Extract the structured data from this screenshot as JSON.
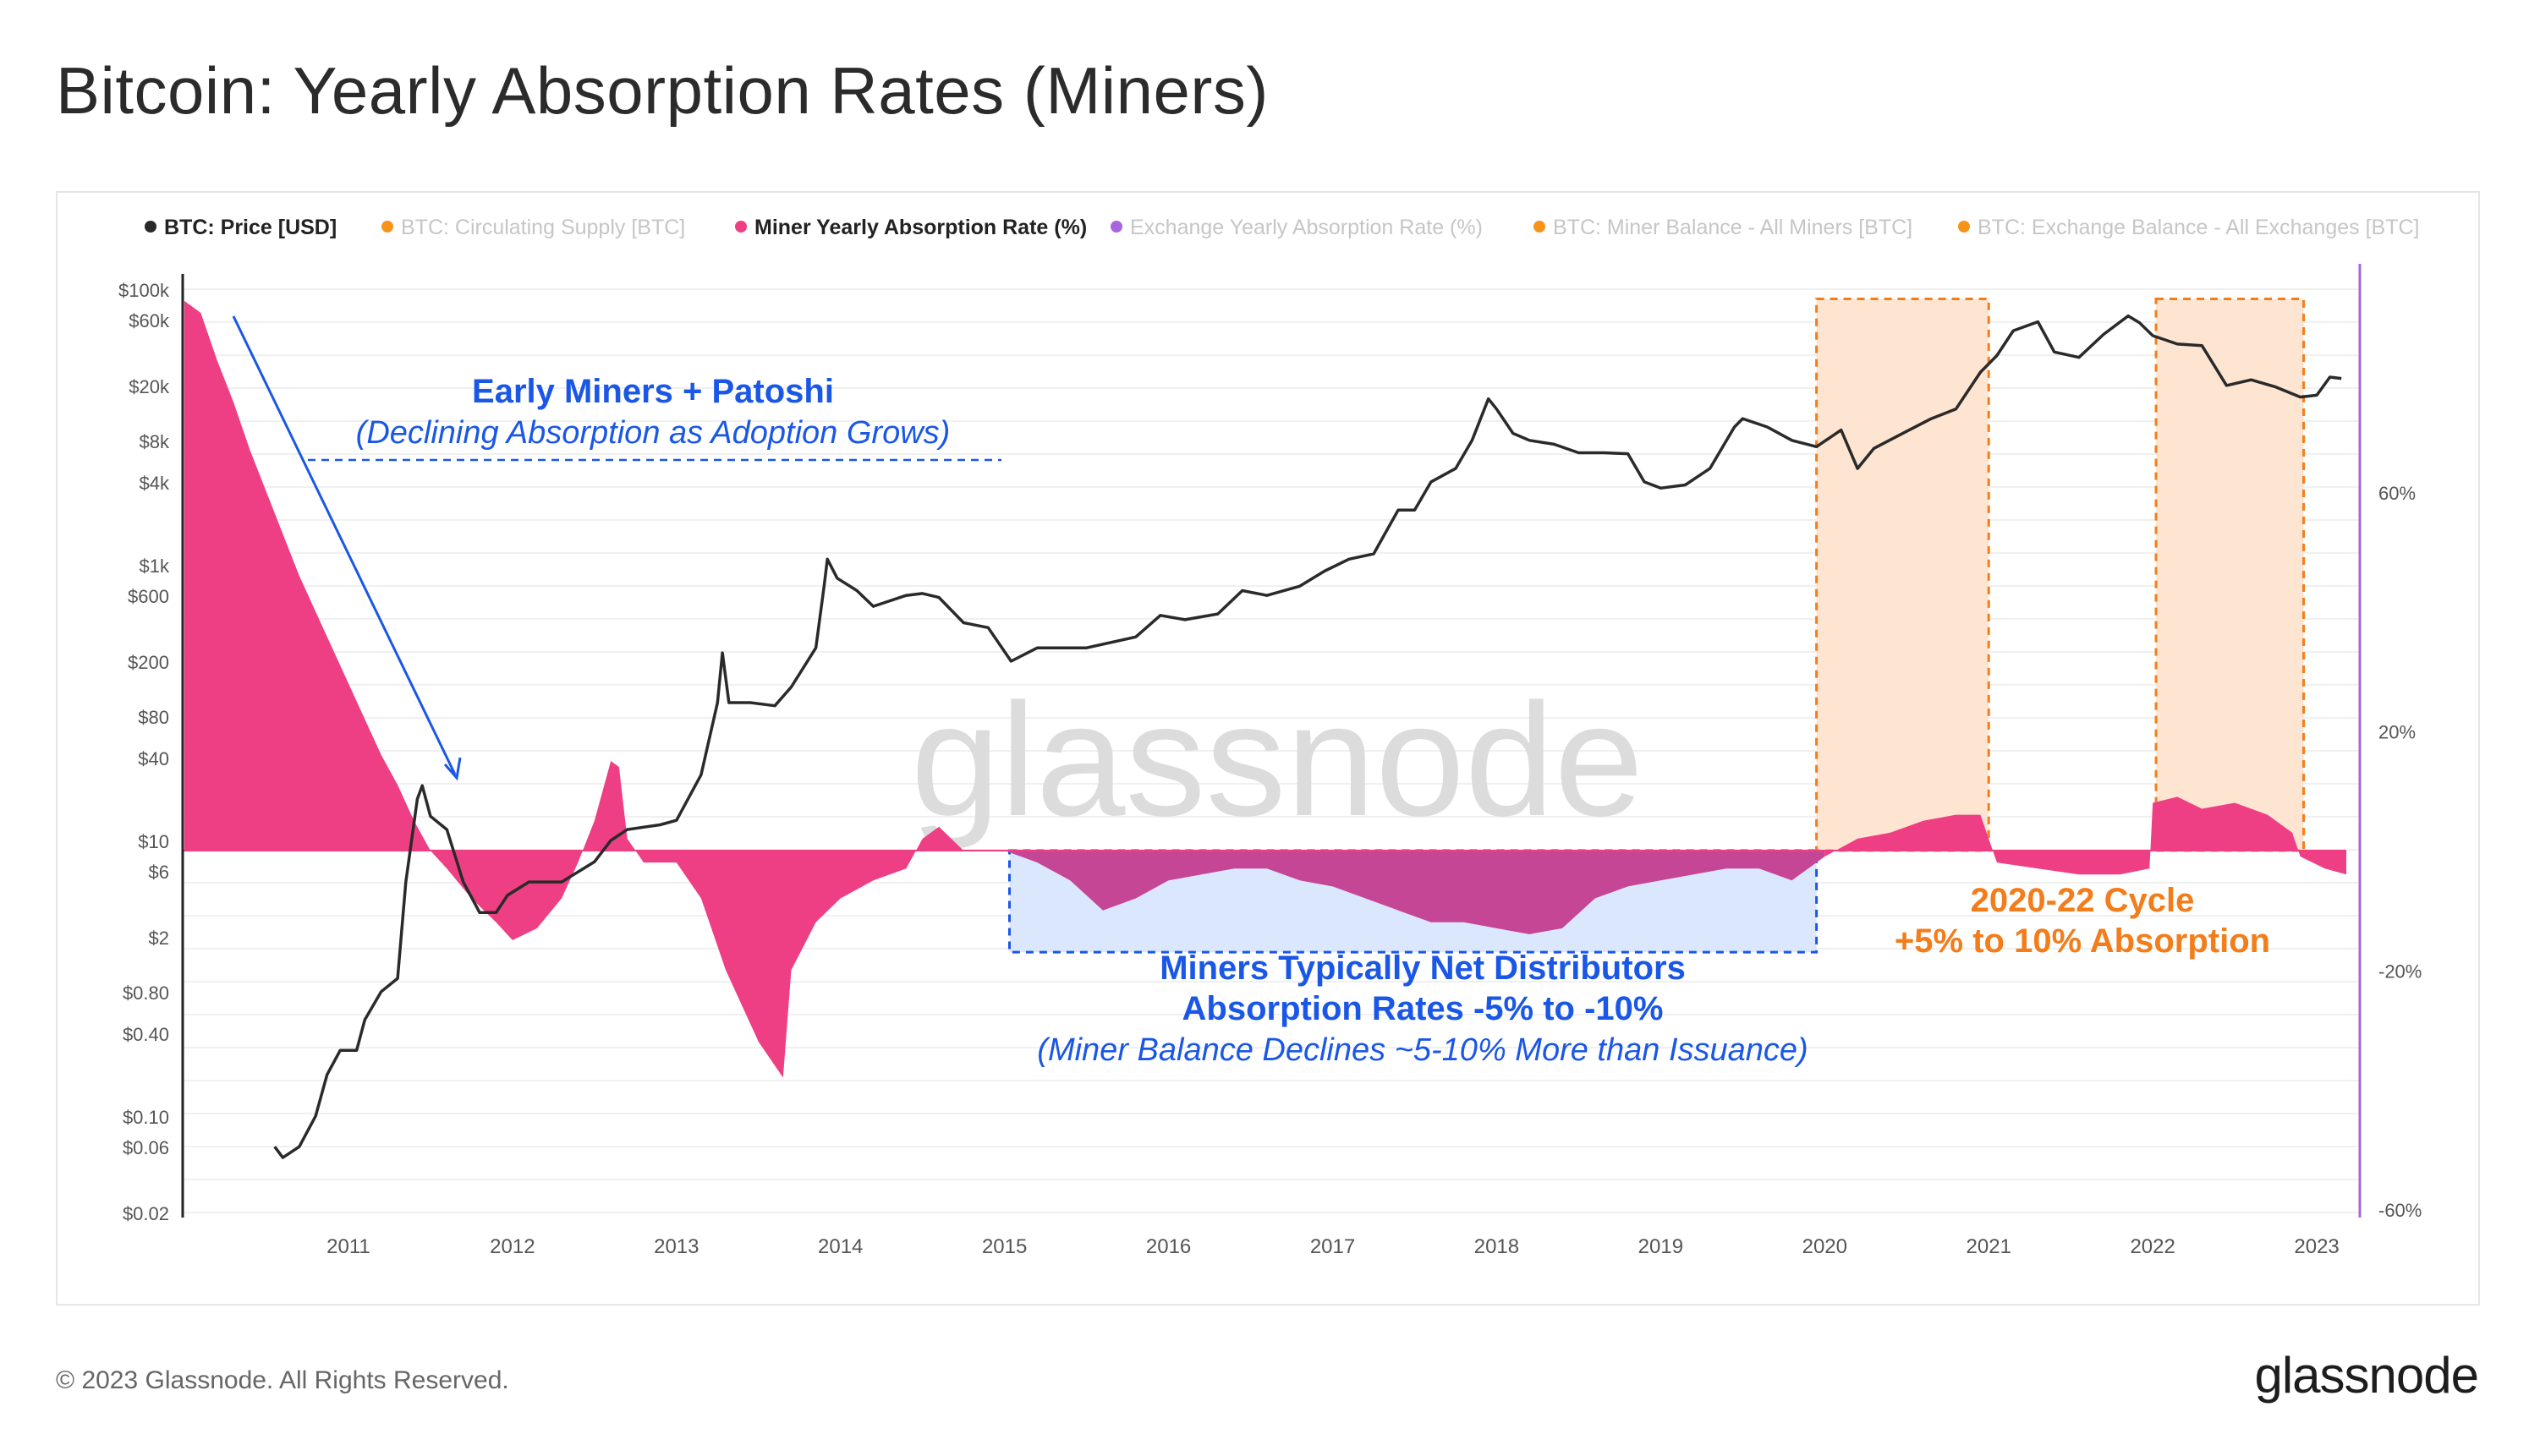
{
  "header": {
    "title": "Bitcoin: Yearly Absorption Rates (Miners)"
  },
  "footer": {
    "copyright": "© 2023 Glassnode. All Rights Reserved.",
    "logo_text": "glassnode"
  },
  "watermark": "glassnode",
  "colors": {
    "price_line": "#2a2a2a",
    "miner_rate_fill": "#ef3f84",
    "miner_rate_fill_dim": "#c64696",
    "right_axis": "#a766e0",
    "annotation_blue": "#1a57e6",
    "annotation_orange": "#f37d1a",
    "highlight_orange_bg": "#fde5d1",
    "highlight_blue_bg": "#dbe7fd",
    "grid": "#ececec"
  },
  "chart_data": {
    "type": "line",
    "title": "Bitcoin: Yearly Absorption Rates (Miners)",
    "legend_position": "top",
    "legend": [
      {
        "label": "BTC: Price [USD]",
        "color": "#2a2a2a",
        "active": true
      },
      {
        "label": "BTC: Circulating Supply [BTC]",
        "color": "#f7931a",
        "active": false
      },
      {
        "label": "Miner Yearly Absorption Rate (%)",
        "color": "#ef3f84",
        "active": true
      },
      {
        "label": "Exchange Yearly Absorption Rate (%)",
        "color": "#a766e0",
        "active": false
      },
      {
        "label": "BTC: Miner Balance - All Miners [BTC]",
        "color": "#f7931a",
        "active": false
      },
      {
        "label": "BTC: Exchange Balance - All Exchanges [BTC]",
        "color": "#f7931a",
        "active": false
      }
    ],
    "x_axis": {
      "range": [
        2010.0,
        2023.18
      ],
      "ticks": [
        "2011",
        "2012",
        "2013",
        "2014",
        "2015",
        "2016",
        "2017",
        "2018",
        "2019",
        "2020",
        "2021",
        "2022",
        "2023"
      ]
    },
    "y_left": {
      "scale": "log",
      "range": [
        0.02,
        100000
      ],
      "ticks": [
        {
          "label": "$100k",
          "v": 100000
        },
        {
          "label": "$60k",
          "v": 60000
        },
        {
          "label": "$20k",
          "v": 20000
        },
        {
          "label": "$8k",
          "v": 8000
        },
        {
          "label": "$4k",
          "v": 4000
        },
        {
          "label": "$1k",
          "v": 1000
        },
        {
          "label": "$600",
          "v": 600
        },
        {
          "label": "$200",
          "v": 200
        },
        {
          "label": "$80",
          "v": 80
        },
        {
          "label": "$40",
          "v": 40
        },
        {
          "label": "$10",
          "v": 10
        },
        {
          "label": "$6",
          "v": 6
        },
        {
          "label": "$2",
          "v": 2
        },
        {
          "label": "$0.80",
          "v": 0.8
        },
        {
          "label": "$0.40",
          "v": 0.4
        },
        {
          "label": "$0.10",
          "v": 0.1
        },
        {
          "label": "$0.06",
          "v": 0.06
        },
        {
          "label": "$0.02",
          "v": 0.02
        }
      ]
    },
    "y_right": {
      "range": [
        -60,
        100
      ],
      "ticks": [
        {
          "label": "60%",
          "v": 60
        },
        {
          "label": "20%",
          "v": 20
        },
        {
          "label": "-20%",
          "v": -20
        },
        {
          "label": "-60%",
          "v": -60
        }
      ]
    },
    "series": [
      {
        "name": "BTC: Price [USD]",
        "axis": "left",
        "points": [
          [
            2010.55,
            0.06
          ],
          [
            2010.6,
            0.05
          ],
          [
            2010.7,
            0.06
          ],
          [
            2010.8,
            0.1
          ],
          [
            2010.87,
            0.2
          ],
          [
            2010.95,
            0.3
          ],
          [
            2011.05,
            0.3
          ],
          [
            2011.1,
            0.5
          ],
          [
            2011.2,
            0.8
          ],
          [
            2011.3,
            1
          ],
          [
            2011.35,
            5
          ],
          [
            2011.42,
            20
          ],
          [
            2011.45,
            25
          ],
          [
            2011.5,
            15
          ],
          [
            2011.6,
            12
          ],
          [
            2011.7,
            5
          ],
          [
            2011.8,
            3
          ],
          [
            2011.9,
            3
          ],
          [
            2011.97,
            4
          ],
          [
            2012.1,
            5
          ],
          [
            2012.3,
            5
          ],
          [
            2012.5,
            7
          ],
          [
            2012.6,
            10
          ],
          [
            2012.7,
            12
          ],
          [
            2012.9,
            13
          ],
          [
            2013.0,
            14
          ],
          [
            2013.15,
            30
          ],
          [
            2013.25,
            100
          ],
          [
            2013.28,
            230
          ],
          [
            2013.32,
            100
          ],
          [
            2013.45,
            100
          ],
          [
            2013.6,
            95
          ],
          [
            2013.7,
            130
          ],
          [
            2013.85,
            250
          ],
          [
            2013.9,
            700
          ],
          [
            2013.92,
            1100
          ],
          [
            2013.98,
            800
          ],
          [
            2014.1,
            650
          ],
          [
            2014.2,
            500
          ],
          [
            2014.4,
            600
          ],
          [
            2014.5,
            620
          ],
          [
            2014.6,
            580
          ],
          [
            2014.75,
            380
          ],
          [
            2014.9,
            350
          ],
          [
            2015.04,
            200
          ],
          [
            2015.2,
            250
          ],
          [
            2015.5,
            250
          ],
          [
            2015.8,
            300
          ],
          [
            2015.95,
            430
          ],
          [
            2016.1,
            400
          ],
          [
            2016.3,
            440
          ],
          [
            2016.45,
            650
          ],
          [
            2016.6,
            600
          ],
          [
            2016.8,
            700
          ],
          [
            2016.95,
            900
          ],
          [
            2017.1,
            1100
          ],
          [
            2017.25,
            1200
          ],
          [
            2017.4,
            2500
          ],
          [
            2017.5,
            2500
          ],
          [
            2017.6,
            4000
          ],
          [
            2017.75,
            5000
          ],
          [
            2017.85,
            8000
          ],
          [
            2017.95,
            16000
          ],
          [
            2018.0,
            13500
          ],
          [
            2018.1,
            9000
          ],
          [
            2018.2,
            8000
          ],
          [
            2018.35,
            7500
          ],
          [
            2018.5,
            6500
          ],
          [
            2018.65,
            6500
          ],
          [
            2018.8,
            6400
          ],
          [
            2018.9,
            4000
          ],
          [
            2019.0,
            3600
          ],
          [
            2019.15,
            3800
          ],
          [
            2019.3,
            5000
          ],
          [
            2019.45,
            10000
          ],
          [
            2019.5,
            11500
          ],
          [
            2019.65,
            10000
          ],
          [
            2019.8,
            8000
          ],
          [
            2019.95,
            7200
          ],
          [
            2020.1,
            9500
          ],
          [
            2020.2,
            5000
          ],
          [
            2020.3,
            7000
          ],
          [
            2020.5,
            9300
          ],
          [
            2020.65,
            11500
          ],
          [
            2020.8,
            13500
          ],
          [
            2020.95,
            25000
          ],
          [
            2021.05,
            33000
          ],
          [
            2021.15,
            50000
          ],
          [
            2021.3,
            58000
          ],
          [
            2021.4,
            35000
          ],
          [
            2021.55,
            32000
          ],
          [
            2021.7,
            47000
          ],
          [
            2021.85,
            64000
          ],
          [
            2021.92,
            57000
          ],
          [
            2022.0,
            46000
          ],
          [
            2022.15,
            40000
          ],
          [
            2022.3,
            39000
          ],
          [
            2022.45,
            20000
          ],
          [
            2022.6,
            22000
          ],
          [
            2022.75,
            19500
          ],
          [
            2022.9,
            16500
          ],
          [
            2023.0,
            17000
          ],
          [
            2023.08,
            23000
          ],
          [
            2023.15,
            22500
          ]
        ]
      },
      {
        "name": "Miner Yearly Absorption Rate (%)",
        "axis": "right",
        "points": [
          [
            2010.0,
            92
          ],
          [
            2010.1,
            90
          ],
          [
            2010.2,
            82
          ],
          [
            2010.3,
            75
          ],
          [
            2010.4,
            67
          ],
          [
            2010.5,
            60
          ],
          [
            2010.6,
            53
          ],
          [
            2010.7,
            46
          ],
          [
            2010.8,
            40
          ],
          [
            2010.9,
            34
          ],
          [
            2011.0,
            28
          ],
          [
            2011.1,
            22
          ],
          [
            2011.2,
            16
          ],
          [
            2011.3,
            11
          ],
          [
            2011.4,
            5
          ],
          [
            2011.5,
            0
          ],
          [
            2011.6,
            -3
          ],
          [
            2011.75,
            -8
          ],
          [
            2011.9,
            -12
          ],
          [
            2012.0,
            -15
          ],
          [
            2012.15,
            -13
          ],
          [
            2012.3,
            -8
          ],
          [
            2012.4,
            -2
          ],
          [
            2012.5,
            5
          ],
          [
            2012.6,
            15
          ],
          [
            2012.65,
            14
          ],
          [
            2012.7,
            2
          ],
          [
            2012.8,
            -2
          ],
          [
            2013.0,
            -2
          ],
          [
            2013.15,
            -8
          ],
          [
            2013.3,
            -20
          ],
          [
            2013.5,
            -32
          ],
          [
            2013.65,
            -38
          ],
          [
            2013.7,
            -20
          ],
          [
            2013.85,
            -12
          ],
          [
            2014.0,
            -8
          ],
          [
            2014.2,
            -5
          ],
          [
            2014.4,
            -3
          ],
          [
            2014.5,
            2
          ],
          [
            2014.6,
            4
          ],
          [
            2014.75,
            0
          ],
          [
            2015.0,
            0
          ],
          [
            2015.2,
            -2
          ],
          [
            2015.4,
            -5
          ],
          [
            2015.6,
            -10
          ],
          [
            2015.8,
            -8
          ],
          [
            2016.0,
            -5
          ],
          [
            2016.2,
            -4
          ],
          [
            2016.4,
            -3
          ],
          [
            2016.6,
            -3
          ],
          [
            2016.8,
            -5
          ],
          [
            2017.0,
            -6
          ],
          [
            2017.2,
            -8
          ],
          [
            2017.4,
            -10
          ],
          [
            2017.6,
            -12
          ],
          [
            2017.8,
            -12
          ],
          [
            2018.0,
            -13
          ],
          [
            2018.2,
            -14
          ],
          [
            2018.4,
            -13
          ],
          [
            2018.6,
            -8
          ],
          [
            2018.8,
            -6
          ],
          [
            2019.0,
            -5
          ],
          [
            2019.2,
            -4
          ],
          [
            2019.4,
            -3
          ],
          [
            2019.6,
            -3
          ],
          [
            2019.8,
            -5
          ],
          [
            2020.0,
            -1
          ],
          [
            2020.2,
            2
          ],
          [
            2020.4,
            3
          ],
          [
            2020.6,
            5
          ],
          [
            2020.8,
            6
          ],
          [
            2020.95,
            6
          ],
          [
            2021.05,
            -2
          ],
          [
            2021.3,
            -3
          ],
          [
            2021.55,
            -4
          ],
          [
            2021.8,
            -4
          ],
          [
            2021.98,
            -3
          ],
          [
            2022.0,
            8
          ],
          [
            2022.15,
            9
          ],
          [
            2022.3,
            7
          ],
          [
            2022.5,
            8
          ],
          [
            2022.7,
            6
          ],
          [
            2022.85,
            3
          ],
          [
            2022.9,
            -1
          ],
          [
            2023.05,
            -3
          ],
          [
            2023.18,
            -4
          ]
        ]
      }
    ],
    "highlight_regions": [
      {
        "name": "early-cycle-distribution",
        "x": [
          2015.03,
          2019.95
        ],
        "y": [
          -17,
          0
        ],
        "color": "blue"
      },
      {
        "name": "2020-21-absorption",
        "x": [
          2019.95,
          2021.0
        ],
        "y_price": [
          85000,
          null
        ],
        "color": "orange"
      },
      {
        "name": "2022-absorption",
        "x": [
          2022.02,
          2022.92
        ],
        "y_price": [
          85000,
          null
        ],
        "color": "orange"
      }
    ],
    "annotations": {
      "early": {
        "title": "Early Miners + Patoshi",
        "subtitle": "(Declining Absorption as Adoption Grows)"
      },
      "distributors": {
        "line1": "Miners Typically Net Distributors",
        "line2": "Absorption Rates -5% to -10%",
        "line3": "(Miner Balance Declines ~5-10% More than Issuance)"
      },
      "cycle": {
        "line1": "2020-22 Cycle",
        "line2": "+5% to 10% Absorption"
      }
    }
  }
}
